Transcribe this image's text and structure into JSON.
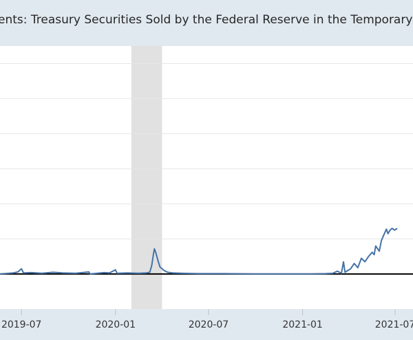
{
  "chart_data": {
    "type": "line",
    "title": "…ents: Treasury Securities Sold by the Federal Reserve in the Temporary Open M…",
    "xlabel": "",
    "ylabel": "",
    "x_ticks": [
      "2019-07",
      "2020-01",
      "2020-07",
      "2021-01",
      "2021-07"
    ],
    "x_tick_dates": [
      "2019-07-01",
      "2020-01-01",
      "2020-07-01",
      "2021-01-01",
      "2021-07-01"
    ],
    "x_range": [
      "2019-05-20",
      "2021-08-05"
    ],
    "y_range": [
      -1,
      6.5
    ],
    "y_gridlines": [
      0,
      1,
      2,
      3,
      4,
      5,
      6
    ],
    "grid": true,
    "recession_shading": {
      "start": "2020-02-01",
      "end": "2020-04-01"
    },
    "colors": {
      "line": "#4572a7",
      "zero_line": "#000000",
      "recession": "#e1e1e1",
      "grid": "#e6e6e6",
      "plot_bg": "#ffffff",
      "frame_bg": "#e1e9f0"
    },
    "series": [
      {
        "points": [
          [
            "2019-05-20",
            0.0
          ],
          [
            "2019-06-15",
            0.03
          ],
          [
            "2019-06-24",
            0.06
          ],
          [
            "2019-07-01",
            0.15
          ],
          [
            "2019-07-05",
            0.03
          ],
          [
            "2019-07-20",
            0.04
          ],
          [
            "2019-08-10",
            0.02
          ],
          [
            "2019-09-01",
            0.05
          ],
          [
            "2019-09-20",
            0.03
          ],
          [
            "2019-10-15",
            0.02
          ],
          [
            "2019-11-10",
            0.06
          ],
          [
            "2019-11-12",
            0.0
          ],
          [
            "2019-12-10",
            0.04
          ],
          [
            "2019-12-20",
            0.03
          ],
          [
            "2020-01-01",
            0.12
          ],
          [
            "2020-01-04",
            0.02
          ],
          [
            "2020-01-25",
            0.03
          ],
          [
            "2020-02-15",
            0.02
          ],
          [
            "2020-03-01",
            0.03
          ],
          [
            "2020-03-08",
            0.05
          ],
          [
            "2020-03-12",
            0.25
          ],
          [
            "2020-03-15",
            0.55
          ],
          [
            "2020-03-17",
            0.72
          ],
          [
            "2020-03-20",
            0.6
          ],
          [
            "2020-03-24",
            0.38
          ],
          [
            "2020-03-28",
            0.2
          ],
          [
            "2020-04-05",
            0.1
          ],
          [
            "2020-04-12",
            0.05
          ],
          [
            "2020-04-22",
            0.03
          ],
          [
            "2020-05-10",
            0.02
          ],
          [
            "2020-06-10",
            0.01
          ],
          [
            "2020-08-01",
            0.01
          ],
          [
            "2020-10-01",
            0.0
          ],
          [
            "2020-12-01",
            0.0
          ],
          [
            "2021-01-15",
            0.0
          ],
          [
            "2021-02-15",
            0.01
          ],
          [
            "2021-03-01",
            0.02
          ],
          [
            "2021-03-10",
            0.08
          ],
          [
            "2021-03-18",
            0.02
          ],
          [
            "2021-03-22",
            0.35
          ],
          [
            "2021-03-25",
            0.05
          ],
          [
            "2021-04-05",
            0.15
          ],
          [
            "2021-04-12",
            0.3
          ],
          [
            "2021-04-19",
            0.18
          ],
          [
            "2021-04-26",
            0.45
          ],
          [
            "2021-05-03",
            0.35
          ],
          [
            "2021-05-10",
            0.5
          ],
          [
            "2021-05-17",
            0.62
          ],
          [
            "2021-05-21",
            0.55
          ],
          [
            "2021-05-24",
            0.8
          ],
          [
            "2021-05-31",
            0.65
          ],
          [
            "2021-06-04",
            0.95
          ],
          [
            "2021-06-10",
            1.15
          ],
          [
            "2021-06-14",
            1.28
          ],
          [
            "2021-06-17",
            1.15
          ],
          [
            "2021-06-21",
            1.25
          ],
          [
            "2021-06-25",
            1.3
          ],
          [
            "2021-06-30",
            1.25
          ],
          [
            "2021-07-05",
            1.3
          ]
        ]
      }
    ]
  }
}
